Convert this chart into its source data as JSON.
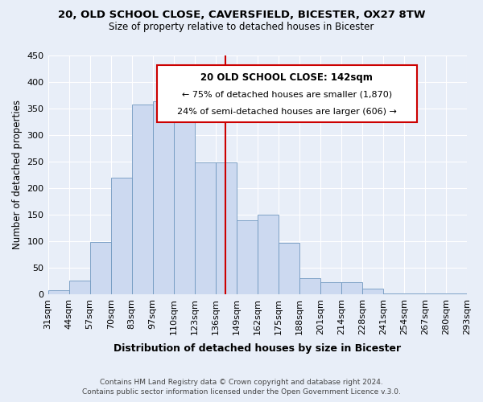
{
  "title": "20, OLD SCHOOL CLOSE, CAVERSFIELD, BICESTER, OX27 8TW",
  "subtitle": "Size of property relative to detached houses in Bicester",
  "xlabel": "Distribution of detached houses by size in Bicester",
  "ylabel": "Number of detached properties",
  "bar_labels": [
    "31sqm",
    "44sqm",
    "57sqm",
    "70sqm",
    "83sqm",
    "97sqm",
    "110sqm",
    "123sqm",
    "136sqm",
    "149sqm",
    "162sqm",
    "175sqm",
    "188sqm",
    "201sqm",
    "214sqm",
    "228sqm",
    "241sqm",
    "254sqm",
    "267sqm",
    "280sqm",
    "293sqm"
  ],
  "bar_values": [
    8,
    25,
    98,
    220,
    358,
    363,
    355,
    248,
    248,
    140,
    150,
    97,
    30,
    22,
    22,
    10,
    2,
    2,
    2,
    2
  ],
  "bar_color": "#ccd9f0",
  "bar_edge_color": "#7098c0",
  "reference_line_color": "#cc0000",
  "annotation_title": "20 OLD SCHOOL CLOSE: 142sqm",
  "annotation_line1": "← 75% of detached houses are smaller (1,870)",
  "annotation_line2": "24% of semi-detached houses are larger (606) →",
  "annotation_box_facecolor": "#ffffff",
  "annotation_box_edgecolor": "#cc0000",
  "ylim": [
    0,
    450
  ],
  "yticks": [
    0,
    50,
    100,
    150,
    200,
    250,
    300,
    350,
    400,
    450
  ],
  "background_color": "#e8eef8",
  "grid_color": "#ffffff",
  "footer1": "Contains HM Land Registry data © Crown copyright and database right 2024.",
  "footer2": "Contains public sector information licensed under the Open Government Licence v.3.0."
}
